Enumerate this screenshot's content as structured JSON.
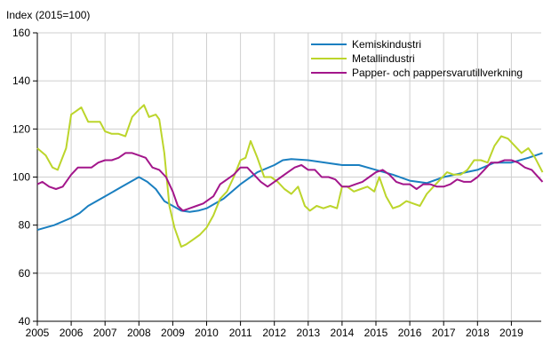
{
  "chart_data": {
    "type": "line",
    "title": "",
    "ylabel": "Index (2015=100)",
    "xlabel": "",
    "ylim": [
      40,
      160
    ],
    "yticks": [
      40,
      60,
      80,
      100,
      120,
      140,
      160
    ],
    "xticks": [
      "2005",
      "2006",
      "2007",
      "2008",
      "2009",
      "2010",
      "2011",
      "2012",
      "2013",
      "2014",
      "2015",
      "2016",
      "2017",
      "2018",
      "2019"
    ],
    "xlim": [
      2005,
      2019.92
    ],
    "grid": true,
    "legend_position": "top-right",
    "series": [
      {
        "name": "Kemiskindustri",
        "color": "#1a7fc0",
        "x": [
          2005,
          2005.5,
          2006,
          2006.25,
          2006.5,
          2007,
          2007.5,
          2008,
          2008.25,
          2008.5,
          2008.75,
          2009,
          2009.25,
          2009.5,
          2009.75,
          2010,
          2010.5,
          2011,
          2011.5,
          2012,
          2012.25,
          2012.5,
          2013,
          2013.5,
          2014,
          2014.5,
          2015,
          2015.5,
          2016,
          2016.5,
          2017,
          2017.5,
          2018,
          2018.5,
          2019,
          2019.5,
          2019.92
        ],
        "values": [
          78,
          80,
          83,
          85,
          88,
          92,
          96,
          100,
          98,
          95,
          90,
          88,
          86,
          85.5,
          86,
          87,
          91,
          97,
          102,
          105,
          107,
          107.5,
          107,
          106,
          105,
          105,
          103,
          101,
          98.5,
          97.5,
          100,
          101.5,
          103,
          106,
          106,
          108,
          110
        ]
      },
      {
        "name": "Metallindustri",
        "color": "#bcd52b",
        "x": [
          2005,
          2005.25,
          2005.45,
          2005.6,
          2005.85,
          2006,
          2006.1,
          2006.3,
          2006.5,
          2006.7,
          2006.85,
          2007,
          2007.2,
          2007.4,
          2007.6,
          2007.8,
          2008,
          2008.15,
          2008.3,
          2008.5,
          2008.6,
          2008.75,
          2008.9,
          2009.05,
          2009.25,
          2009.4,
          2009.6,
          2009.8,
          2010,
          2010.2,
          2010.4,
          2010.6,
          2010.8,
          2011,
          2011.15,
          2011.3,
          2011.5,
          2011.7,
          2011.9,
          2012.1,
          2012.3,
          2012.5,
          2012.7,
          2012.9,
          2013.05,
          2013.25,
          2013.45,
          2013.65,
          2013.85,
          2014,
          2014.15,
          2014.35,
          2014.55,
          2014.75,
          2014.95,
          2015.1,
          2015.3,
          2015.5,
          2015.7,
          2015.9,
          2016.1,
          2016.3,
          2016.5,
          2016.7,
          2016.9,
          2017.1,
          2017.3,
          2017.5,
          2017.7,
          2017.9,
          2018.1,
          2018.3,
          2018.5,
          2018.7,
          2018.9,
          2019.1,
          2019.3,
          2019.5,
          2019.7,
          2019.92
        ],
        "values": [
          112,
          109,
          104,
          103,
          112,
          126,
          127,
          129,
          123,
          123,
          123,
          119,
          118,
          118,
          117,
          125,
          128,
          130,
          125,
          126,
          124,
          110,
          88,
          79,
          71,
          72,
          74,
          76,
          79,
          84,
          91,
          94,
          100,
          107,
          108,
          115,
          108,
          100,
          100,
          98,
          95,
          93,
          96,
          88,
          86,
          88,
          87,
          88,
          87,
          96,
          96,
          94,
          95,
          96,
          94,
          100,
          92,
          87,
          88,
          90,
          89,
          88,
          93,
          96,
          99,
          102,
          101,
          101,
          103,
          107,
          107,
          106,
          113,
          117,
          116,
          113,
          110,
          112,
          108,
          102
        ]
      },
      {
        "name": "Papper- och pappersvarutillverkning",
        "color": "#a3168b",
        "x": [
          2005,
          2005.15,
          2005.35,
          2005.55,
          2005.75,
          2006,
          2006.2,
          2006.4,
          2006.6,
          2006.8,
          2007,
          2007.2,
          2007.4,
          2007.6,
          2007.8,
          2008,
          2008.2,
          2008.4,
          2008.6,
          2008.8,
          2009,
          2009.15,
          2009.3,
          2009.5,
          2009.7,
          2009.9,
          2010,
          2010.2,
          2010.4,
          2010.6,
          2010.8,
          2011,
          2011.2,
          2011.4,
          2011.6,
          2011.8,
          2012,
          2012.2,
          2012.4,
          2012.6,
          2012.8,
          2013,
          2013.2,
          2013.4,
          2013.6,
          2013.8,
          2014,
          2014.2,
          2014.4,
          2014.6,
          2014.8,
          2015,
          2015.2,
          2015.4,
          2015.6,
          2015.8,
          2016,
          2016.2,
          2016.4,
          2016.6,
          2016.8,
          2017,
          2017.2,
          2017.4,
          2017.6,
          2017.8,
          2018,
          2018.2,
          2018.4,
          2018.6,
          2018.8,
          2019,
          2019.2,
          2019.4,
          2019.6,
          2019.92
        ],
        "values": [
          97,
          98,
          96,
          95,
          96,
          101,
          104,
          104,
          104,
          106,
          107,
          107,
          108,
          110,
          110,
          109,
          108,
          104,
          103,
          100,
          94,
          88,
          86,
          87,
          88,
          89,
          90,
          92,
          97,
          99,
          101,
          104,
          104,
          101,
          98,
          96,
          98,
          100,
          102,
          104,
          105,
          103,
          103,
          100,
          100,
          99,
          96,
          96,
          97,
          98,
          100,
          102,
          103,
          101,
          98,
          97,
          97,
          95,
          97,
          97,
          96,
          96,
          97,
          99,
          98,
          98,
          100,
          103,
          106,
          106,
          107,
          107,
          106,
          104,
          103,
          98
        ]
      }
    ]
  }
}
